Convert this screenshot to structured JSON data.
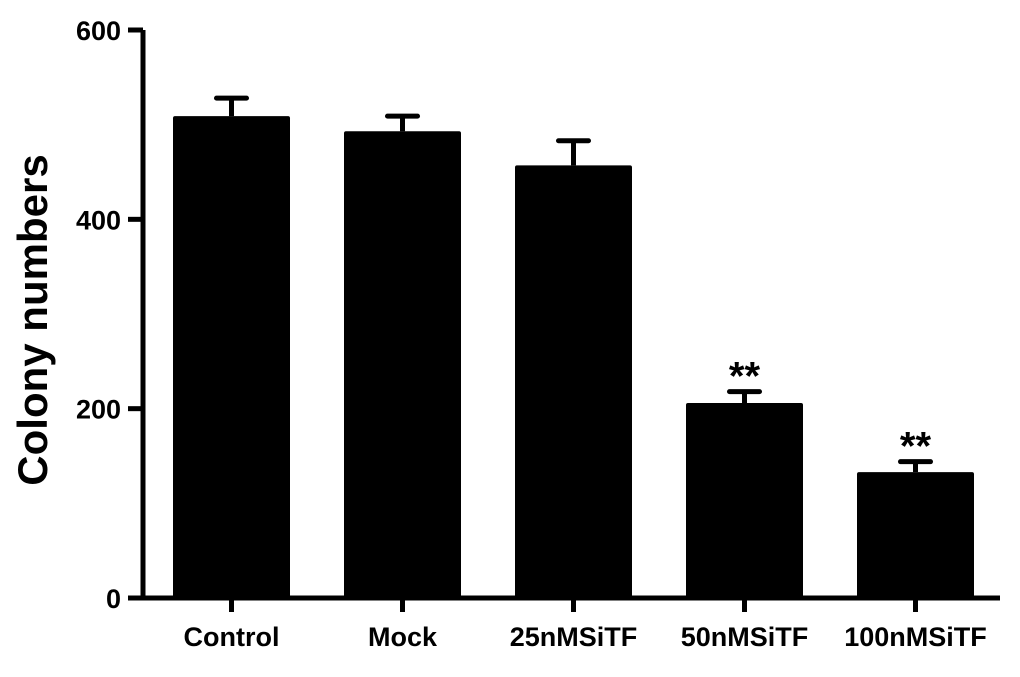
{
  "chart_data": {
    "type": "bar",
    "title": "",
    "xlabel": "",
    "ylabel": "Colony numbers",
    "ylim": [
      0,
      600
    ],
    "yticks": [
      0,
      200,
      400,
      600
    ],
    "grid": false,
    "categories": [
      "Control",
      "Mock",
      "25nMSiTF",
      "50nMSiTF",
      "100nMSiTF"
    ],
    "values": [
      509,
      493,
      457,
      206,
      133
    ],
    "error_upper": [
      19,
      16,
      26,
      12,
      11
    ],
    "annotations": [
      "",
      "",
      "",
      "**",
      "**"
    ],
    "bar_color": "#000000"
  }
}
